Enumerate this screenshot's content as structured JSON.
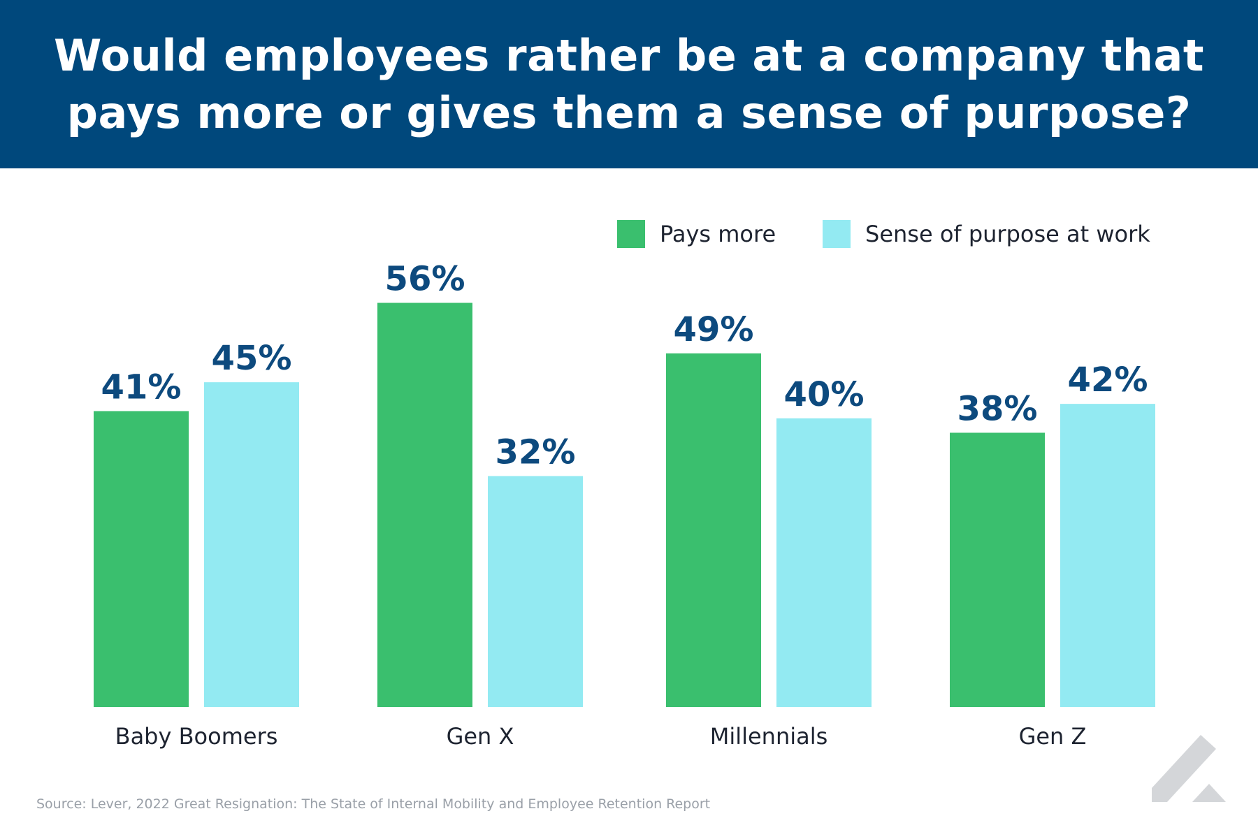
{
  "header": {
    "title": "Would employees rather be at a company that pays more or gives them a sense of purpose?"
  },
  "colors": {
    "banner": "#00487c",
    "pays_more": "#3abf6e",
    "sense_of_purpose": "#93eaf2",
    "value_text": "#0d4a7e",
    "logo": "#d4d6d9"
  },
  "chart_data": {
    "type": "bar",
    "categories": [
      "Baby Boomers",
      "Gen X",
      "Millennials",
      "Gen Z"
    ],
    "series": [
      {
        "name": "Pays more",
        "values": [
          41,
          56,
          49,
          38
        ],
        "labels": [
          "41%",
          "56%",
          "49%",
          "38%"
        ]
      },
      {
        "name": "Sense of purpose at work",
        "values": [
          45,
          32,
          40,
          42
        ],
        "labels": [
          "45%",
          "32%",
          "40%",
          "42%"
        ]
      }
    ],
    "title": "Would employees rather be at a company that pays more or gives them a sense of purpose?",
    "xlabel": "",
    "ylabel": "",
    "ylim": [
      0,
      60
    ],
    "grid": false,
    "legend": "top-right",
    "value_format": "percent"
  },
  "footer": {
    "source": "Source: Lever, 2022 Great Resignation: The State of Internal Mobility and Employee Retention Report"
  },
  "icons": {
    "logo": "lever-logo-icon"
  }
}
